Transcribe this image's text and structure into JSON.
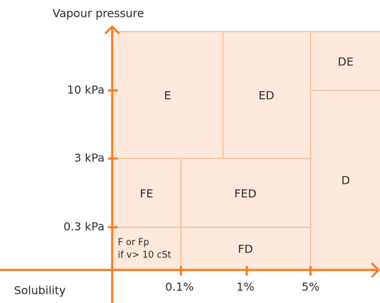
{
  "axes": {
    "y_label": "Vapour pressure",
    "x_label": "Solubility"
  },
  "y_ticks": [
    "10 kPa",
    "3 kPa",
    "0.3 kPa"
  ],
  "x_ticks": [
    "0.1%",
    "1%",
    "5%"
  ],
  "regions": {
    "E": "E",
    "ED": "ED",
    "DE": "DE",
    "D": "D",
    "FE": "FE",
    "FED": "FED",
    "F": [
      "F or Fp",
      "if v> 10 cSt"
    ],
    "FD": "FD"
  }
}
